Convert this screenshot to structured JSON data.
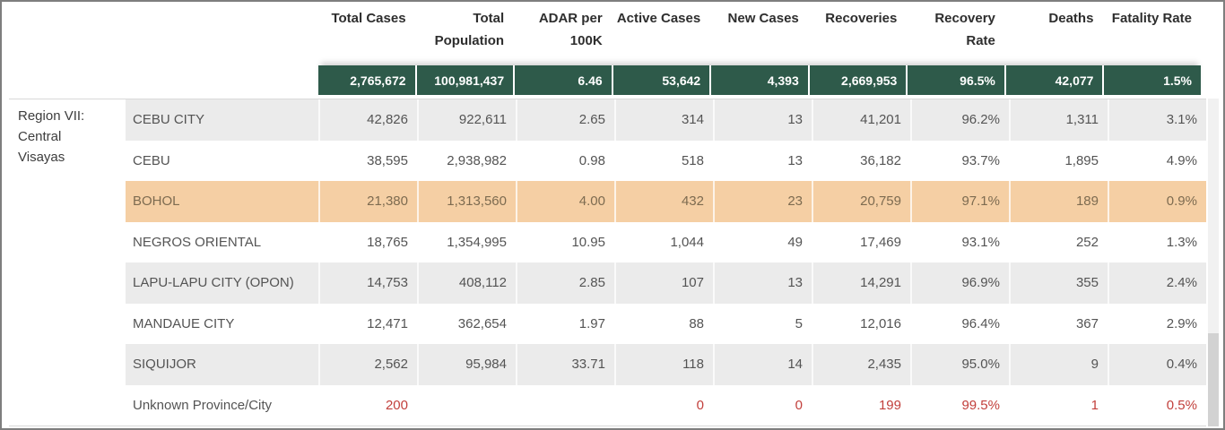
{
  "colors": {
    "totals_band_green": "#2e5a4a",
    "highlight_orange": "#f5cfa4",
    "stripe_gray": "#ebebeb",
    "alert_red": "#c2403c"
  },
  "chart_data": {
    "type": "table",
    "region_label": "Region VII: Central Visayas",
    "columns": [
      "Total Cases",
      "Total Population",
      "ADAR per 100K",
      "Active Cases",
      "New Cases",
      "Recoveries",
      "Recovery Rate",
      "Deaths",
      "Fatality Rate"
    ],
    "totals": [
      "2,765,672",
      "100,981,437",
      "6.46",
      "53,642",
      "4,393",
      "2,669,953",
      "96.5%",
      "42,077",
      "1.5%"
    ],
    "rows": [
      {
        "province": "CEBU CITY",
        "values": [
          "42,826",
          "922,611",
          "2.65",
          "314",
          "13",
          "41,201",
          "96.2%",
          "1,311",
          "3.1%"
        ]
      },
      {
        "province": "CEBU",
        "values": [
          "38,595",
          "2,938,982",
          "0.98",
          "518",
          "13",
          "36,182",
          "93.7%",
          "1,895",
          "4.9%"
        ]
      },
      {
        "province": "BOHOL",
        "values": [
          "21,380",
          "1,313,560",
          "4.00",
          "432",
          "23",
          "20,759",
          "97.1%",
          "189",
          "0.9%"
        ]
      },
      {
        "province": "NEGROS ORIENTAL",
        "values": [
          "18,765",
          "1,354,995",
          "10.95",
          "1,044",
          "49",
          "17,469",
          "93.1%",
          "252",
          "1.3%"
        ]
      },
      {
        "province": "LAPU-LAPU CITY (OPON)",
        "values": [
          "14,753",
          "408,112",
          "2.85",
          "107",
          "13",
          "14,291",
          "96.9%",
          "355",
          "2.4%"
        ]
      },
      {
        "province": "MANDAUE CITY",
        "values": [
          "12,471",
          "362,654",
          "1.97",
          "88",
          "5",
          "12,016",
          "96.4%",
          "367",
          "2.9%"
        ]
      },
      {
        "province": "SIQUIJOR",
        "values": [
          "2,562",
          "95,984",
          "33.71",
          "118",
          "14",
          "2,435",
          "95.0%",
          "9",
          "0.4%"
        ]
      },
      {
        "province": "Unknown Province/City",
        "values": [
          "200",
          "",
          "",
          "0",
          "0",
          "199",
          "99.5%",
          "1",
          "0.5%"
        ]
      }
    ],
    "highlighted_row": "BOHOL",
    "red_flagged_row": "Unknown Province/City"
  }
}
